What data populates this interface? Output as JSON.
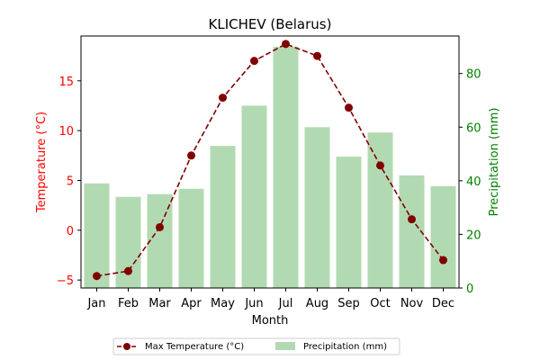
{
  "chart_data": {
    "type": "bar+line",
    "title": "KLICHEV (Belarus)",
    "xlabel": "Month",
    "categories": [
      "Jan",
      "Feb",
      "Mar",
      "Apr",
      "May",
      "Jun",
      "Jul",
      "Aug",
      "Sep",
      "Oct",
      "Nov",
      "Dec"
    ],
    "left_axis": {
      "label": "Temperature (°C)",
      "color": "#ff0000",
      "range": [
        -5.8,
        19.5
      ],
      "ticks": [
        -5,
        0,
        5,
        10,
        15
      ]
    },
    "right_axis": {
      "label": "Precipitation (mm)",
      "color": "#008000",
      "range": [
        0,
        94
      ],
      "ticks": [
        0,
        20,
        40,
        60,
        80
      ]
    },
    "series": [
      {
        "name": "Max Temperature (°C)",
        "type": "line",
        "axis": "left",
        "color": "#800000",
        "line_style": "dashed",
        "marker": "circle",
        "values": [
          -4.6,
          -4.1,
          0.3,
          7.5,
          13.3,
          17.0,
          18.7,
          17.5,
          12.3,
          6.5,
          1.1,
          -3.0
        ]
      },
      {
        "name": "Precipitation (mm)",
        "type": "bar",
        "axis": "right",
        "color": "#b2dab2",
        "values": [
          39,
          34,
          35,
          37,
          53,
          68,
          90,
          60,
          49,
          58,
          42,
          38
        ]
      }
    ],
    "legend": {
      "placement": "bottom-center",
      "columns": 2
    }
  }
}
